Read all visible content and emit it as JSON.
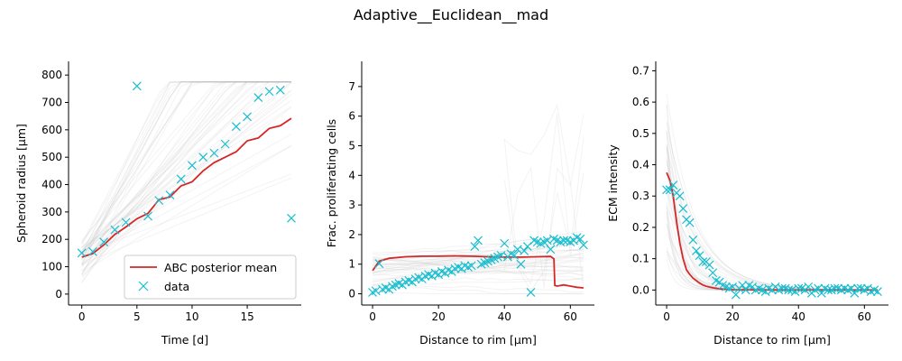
{
  "figure": {
    "suptitle": "Adaptive__Euclidean__mad"
  },
  "chart_data": [
    {
      "type": "line",
      "xlabel": "Time [d]",
      "ylabel": "Spheroid radius [μm]",
      "xlim": [
        -1.2,
        19.9
      ],
      "ylim": [
        -40,
        850
      ],
      "xticks": [
        0,
        5,
        10,
        15
      ],
      "yticks": [
        0,
        100,
        200,
        300,
        400,
        500,
        600,
        700,
        800
      ],
      "legend": {
        "placement": "lower right",
        "entries": [
          "ABC posterior mean",
          "data"
        ]
      },
      "posterior_mean": {
        "name": "ABC posterior mean",
        "color": "#d62728",
        "x": [
          0,
          1,
          2,
          3,
          4,
          5,
          6,
          7,
          8,
          9,
          10,
          11,
          12,
          13,
          14,
          15,
          16,
          17,
          18,
          19
        ],
        "y": [
          135,
          148,
          180,
          218,
          245,
          275,
          295,
          345,
          355,
          395,
          410,
          450,
          480,
          500,
          520,
          560,
          570,
          605,
          615,
          642
        ]
      },
      "data": {
        "name": "data",
        "color": "#17becf",
        "x": [
          0,
          1,
          2,
          3,
          4,
          5,
          6,
          7,
          8,
          9,
          10,
          11,
          12,
          13,
          14,
          15,
          16,
          17,
          18,
          19
        ],
        "y": [
          150,
          155,
          190,
          235,
          262,
          760,
          285,
          342,
          362,
          420,
          470,
          500,
          515,
          548,
          612,
          648,
          718,
          740,
          745,
          277
        ]
      },
      "background_trajectories": "faint grey posterior simulations"
    },
    {
      "type": "line",
      "xlabel": "Distance to rim [μm]",
      "ylabel": "Frac. proliferating cells",
      "xlim": [
        -3.3,
        67.3
      ],
      "ylim": [
        -0.38,
        7.85
      ],
      "xticks": [
        0,
        20,
        40,
        60
      ],
      "yticks": [
        0,
        1,
        2,
        3,
        4,
        5,
        6,
        7
      ],
      "posterior_mean": {
        "name": "ABC posterior mean",
        "color": "#d62728",
        "x": [
          0,
          2,
          5,
          10,
          15,
          20,
          25,
          30,
          35,
          40,
          45,
          50,
          54,
          55,
          55.3,
          56,
          58,
          60,
          62,
          64
        ],
        "y": [
          0.78,
          1.1,
          1.2,
          1.25,
          1.27,
          1.27,
          1.28,
          1.27,
          1.25,
          1.24,
          1.24,
          1.25,
          1.26,
          1.18,
          0.28,
          0.26,
          0.3,
          0.26,
          0.22,
          0.2
        ]
      },
      "data": {
        "name": "data",
        "color": "#17becf",
        "x": [
          0,
          1,
          2,
          3,
          4,
          5,
          6,
          7,
          8,
          9,
          10,
          11,
          12,
          13,
          14,
          15,
          16,
          17,
          18,
          19,
          20,
          21,
          22,
          23,
          24,
          25,
          26,
          27,
          28,
          29,
          30,
          31,
          32,
          33,
          34,
          35,
          36,
          37,
          38,
          39,
          40,
          41,
          42,
          43,
          44,
          45,
          46,
          47,
          48,
          49,
          50,
          51,
          52,
          53,
          54,
          55,
          56,
          57,
          58,
          59,
          60,
          61,
          62,
          63,
          64
        ],
        "y": [
          0.05,
          0.1,
          1.02,
          0.15,
          0.2,
          0.15,
          0.25,
          0.3,
          0.35,
          0.3,
          0.4,
          0.45,
          0.4,
          0.5,
          0.55,
          0.5,
          0.6,
          0.65,
          0.6,
          0.7,
          0.65,
          0.75,
          0.7,
          0.8,
          0.75,
          0.85,
          0.9,
          0.85,
          0.95,
          0.9,
          0.95,
          1.6,
          1.8,
          1.0,
          1.05,
          1.1,
          1.15,
          1.2,
          1.25,
          1.3,
          1.7,
          1.25,
          1.35,
          1.3,
          1.5,
          1.0,
          1.45,
          1.6,
          0.05,
          1.8,
          1.75,
          1.7,
          1.75,
          1.8,
          1.5,
          1.85,
          1.8,
          1.75,
          1.8,
          1.8,
          1.75,
          1.8,
          1.9,
          1.85,
          1.65
        ]
      },
      "background_trajectories": "faint grey posterior simulations"
    },
    {
      "type": "line",
      "xlabel": "Distance to rim [μm]",
      "ylabel": "ECM intensity",
      "xlim": [
        -3.3,
        67.3
      ],
      "ylim": [
        -0.048,
        0.73
      ],
      "xticks": [
        0,
        20,
        40,
        60
      ],
      "yticks": [
        0.0,
        0.1,
        0.2,
        0.3,
        0.4,
        0.5,
        0.6,
        0.7
      ],
      "posterior_mean": {
        "name": "ABC posterior mean",
        "color": "#d62728",
        "x": [
          0,
          1,
          2,
          3,
          4,
          5,
          6,
          7,
          8,
          9,
          10,
          11,
          12,
          14,
          16,
          18,
          20,
          30,
          40,
          50,
          60,
          64
        ],
        "y": [
          0.375,
          0.35,
          0.3,
          0.22,
          0.15,
          0.1,
          0.065,
          0.05,
          0.038,
          0.03,
          0.022,
          0.016,
          0.012,
          0.007,
          0.004,
          0.002,
          0.001,
          0.0,
          0.0,
          0.0,
          0.0,
          0.0
        ]
      },
      "data": {
        "name": "data",
        "color": "#17becf",
        "x": [
          0,
          1,
          2,
          3,
          4,
          5,
          6,
          7,
          8,
          9,
          10,
          11,
          12,
          13,
          14,
          15,
          16,
          17,
          18,
          19,
          20,
          21,
          22,
          23,
          24,
          25,
          26,
          27,
          28,
          29,
          30,
          31,
          32,
          33,
          34,
          35,
          36,
          37,
          38,
          39,
          40,
          41,
          42,
          43,
          44,
          45,
          46,
          47,
          48,
          49,
          50,
          51,
          52,
          53,
          54,
          55,
          56,
          57,
          58,
          59,
          60,
          61,
          62,
          63,
          64
        ],
        "y": [
          0.32,
          0.32,
          0.335,
          0.31,
          0.3,
          0.26,
          0.225,
          0.215,
          0.16,
          0.125,
          0.11,
          0.09,
          0.09,
          0.08,
          0.055,
          0.03,
          0.025,
          0.015,
          0.01,
          0.005,
          0.01,
          -0.015,
          0.005,
          0.015,
          0.0,
          0.015,
          0.01,
          0.0,
          0.005,
          0.0,
          -0.005,
          0.005,
          0.0,
          0.01,
          0.0,
          0.005,
          0.005,
          0.0,
          0.0,
          -0.005,
          0.005,
          0.005,
          0.0,
          0.01,
          -0.01,
          0.0,
          0.005,
          -0.01,
          0.005,
          0.0,
          0.0,
          0.005,
          0.005,
          0.0,
          0.005,
          0.0,
          0.005,
          -0.01,
          0.005,
          0.005,
          0.0,
          0.005,
          -0.005,
          0.0,
          -0.005
        ]
      },
      "background_trajectories": "faint grey posterior simulations"
    }
  ]
}
